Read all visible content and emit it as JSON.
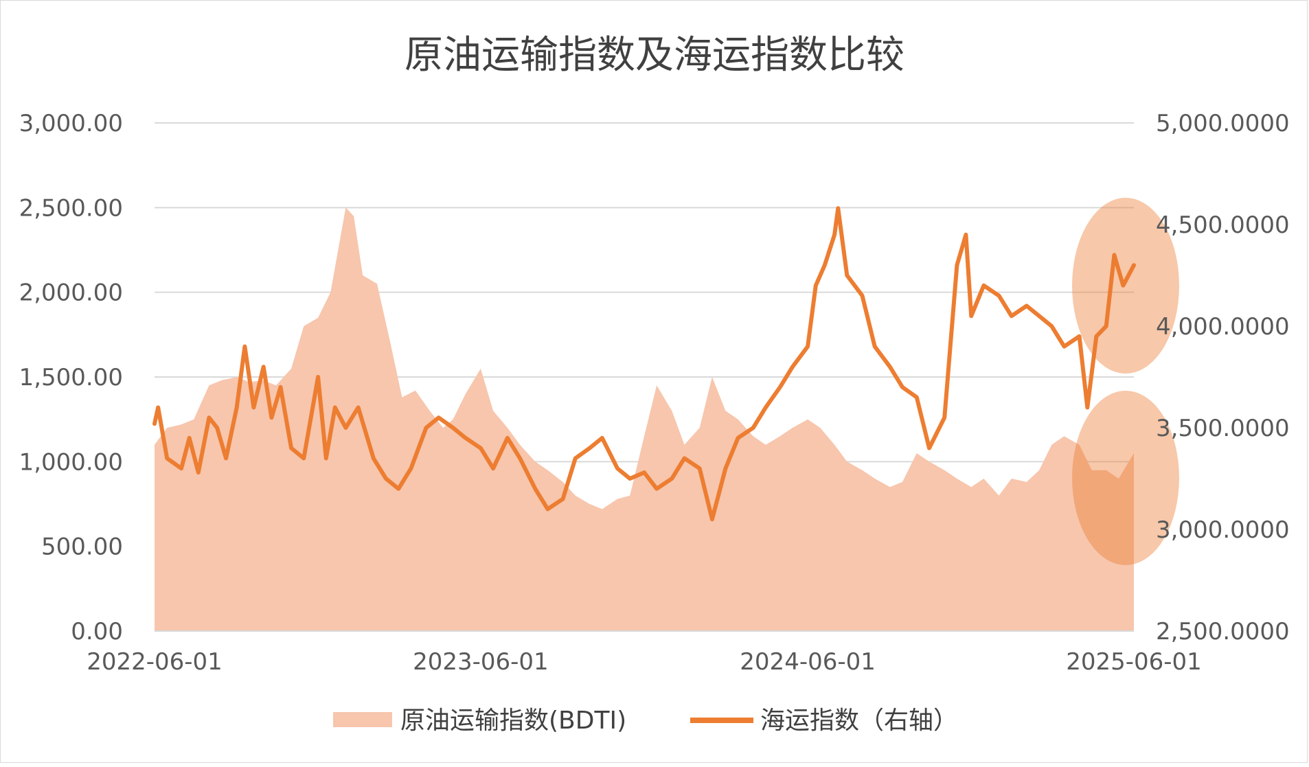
{
  "chart_data": {
    "type": "area+line",
    "title": "原油运输指数及海运指数比较",
    "x_range": [
      "2022-06-01",
      "2025-06-01"
    ],
    "x_ticks": [
      "2022-06-01",
      "2023-06-01",
      "2024-06-01",
      "2025-06-01"
    ],
    "y_left": {
      "range": [
        0,
        3000
      ],
      "ticks": [
        "0.00",
        "500.00",
        "1,000.00",
        "1,500.00",
        "2,000.00",
        "2,500.00",
        "3,000.00"
      ],
      "tick_values": [
        0,
        500,
        1000,
        1500,
        2000,
        2500,
        3000
      ]
    },
    "y_right": {
      "range": [
        2500,
        5000
      ],
      "ticks": [
        "2,500.0000",
        "3,000.0000",
        "3,500.0000",
        "4,000.0000",
        "4,500.0000",
        "5,000.0000"
      ],
      "tick_values": [
        2500,
        3000,
        3500,
        4000,
        4500,
        5000
      ]
    },
    "grid": true,
    "legend_position": "bottom",
    "series": [
      {
        "name": "原油运输指数(BDTI)",
        "kind": "area",
        "axis": "left",
        "color": "#f7c6ad",
        "points": [
          [
            "2022-06-01",
            1100
          ],
          [
            "2022-06-15",
            1200
          ],
          [
            "2022-07-01",
            1220
          ],
          [
            "2022-07-15",
            1250
          ],
          [
            "2022-08-01",
            1450
          ],
          [
            "2022-08-15",
            1480
          ],
          [
            "2022-09-01",
            1500
          ],
          [
            "2022-09-15",
            1470
          ],
          [
            "2022-10-01",
            1480
          ],
          [
            "2022-10-15",
            1450
          ],
          [
            "2022-11-01",
            1550
          ],
          [
            "2022-11-15",
            1800
          ],
          [
            "2022-12-01",
            1850
          ],
          [
            "2022-12-15",
            2000
          ],
          [
            "2023-01-01",
            2500
          ],
          [
            "2023-01-10",
            2450
          ],
          [
            "2023-01-20",
            2100
          ],
          [
            "2023-02-05",
            2050
          ],
          [
            "2023-02-20",
            1700
          ],
          [
            "2023-03-05",
            1380
          ],
          [
            "2023-03-20",
            1420
          ],
          [
            "2023-04-05",
            1300
          ],
          [
            "2023-04-20",
            1200
          ],
          [
            "2023-05-01",
            1250
          ],
          [
            "2023-05-15",
            1400
          ],
          [
            "2023-06-01",
            1550
          ],
          [
            "2023-06-15",
            1300
          ],
          [
            "2023-07-01",
            1200
          ],
          [
            "2023-07-15",
            1100
          ],
          [
            "2023-08-01",
            1000
          ],
          [
            "2023-08-15",
            950
          ],
          [
            "2023-09-01",
            880
          ],
          [
            "2023-09-15",
            800
          ],
          [
            "2023-10-01",
            750
          ],
          [
            "2023-10-15",
            720
          ],
          [
            "2023-11-01",
            780
          ],
          [
            "2023-11-15",
            800
          ],
          [
            "2023-12-01",
            1150
          ],
          [
            "2023-12-15",
            1450
          ],
          [
            "2024-01-01",
            1300
          ],
          [
            "2024-01-15",
            1100
          ],
          [
            "2024-02-01",
            1200
          ],
          [
            "2024-02-15",
            1500
          ],
          [
            "2024-03-01",
            1300
          ],
          [
            "2024-03-15",
            1250
          ],
          [
            "2024-04-01",
            1150
          ],
          [
            "2024-04-15",
            1100
          ],
          [
            "2024-05-01",
            1150
          ],
          [
            "2024-05-15",
            1200
          ],
          [
            "2024-06-01",
            1250
          ],
          [
            "2024-06-15",
            1200
          ],
          [
            "2024-07-01",
            1100
          ],
          [
            "2024-07-15",
            1000
          ],
          [
            "2024-08-01",
            950
          ],
          [
            "2024-08-15",
            900
          ],
          [
            "2024-09-01",
            850
          ],
          [
            "2024-09-15",
            880
          ],
          [
            "2024-10-01",
            1050
          ],
          [
            "2024-10-15",
            1000
          ],
          [
            "2024-11-01",
            950
          ],
          [
            "2024-11-15",
            900
          ],
          [
            "2024-12-01",
            850
          ],
          [
            "2024-12-15",
            900
          ],
          [
            "2025-01-01",
            800
          ],
          [
            "2025-01-15",
            900
          ],
          [
            "2025-02-01",
            880
          ],
          [
            "2025-02-15",
            950
          ],
          [
            "2025-03-01",
            1100
          ],
          [
            "2025-03-15",
            1150
          ],
          [
            "2025-04-01",
            1100
          ],
          [
            "2025-04-15",
            950
          ],
          [
            "2025-05-01",
            950
          ],
          [
            "2025-05-15",
            900
          ],
          [
            "2025-06-01",
            1050
          ]
        ]
      },
      {
        "name": "海运指数（右轴）",
        "kind": "line",
        "axis": "right",
        "color": "#ed7d31",
        "points": [
          [
            "2022-06-01",
            3520
          ],
          [
            "2022-06-05",
            3600
          ],
          [
            "2022-06-15",
            3350
          ],
          [
            "2022-07-01",
            3300
          ],
          [
            "2022-07-10",
            3450
          ],
          [
            "2022-07-20",
            3280
          ],
          [
            "2022-08-01",
            3550
          ],
          [
            "2022-08-10",
            3500
          ],
          [
            "2022-08-20",
            3350
          ],
          [
            "2022-09-01",
            3600
          ],
          [
            "2022-09-10",
            3900
          ],
          [
            "2022-09-20",
            3600
          ],
          [
            "2022-10-01",
            3800
          ],
          [
            "2022-10-10",
            3550
          ],
          [
            "2022-10-20",
            3700
          ],
          [
            "2022-11-01",
            3400
          ],
          [
            "2022-11-15",
            3350
          ],
          [
            "2022-12-01",
            3750
          ],
          [
            "2022-12-10",
            3350
          ],
          [
            "2022-12-20",
            3600
          ],
          [
            "2023-01-01",
            3500
          ],
          [
            "2023-01-15",
            3600
          ],
          [
            "2023-02-01",
            3350
          ],
          [
            "2023-02-15",
            3250
          ],
          [
            "2023-03-01",
            3200
          ],
          [
            "2023-03-15",
            3300
          ],
          [
            "2023-04-01",
            3500
          ],
          [
            "2023-04-15",
            3550
          ],
          [
            "2023-05-01",
            3500
          ],
          [
            "2023-05-15",
            3450
          ],
          [
            "2023-06-01",
            3400
          ],
          [
            "2023-06-15",
            3300
          ],
          [
            "2023-07-01",
            3450
          ],
          [
            "2023-07-15",
            3350
          ],
          [
            "2023-08-01",
            3200
          ],
          [
            "2023-08-15",
            3100
          ],
          [
            "2023-09-01",
            3150
          ],
          [
            "2023-09-15",
            3350
          ],
          [
            "2023-10-01",
            3400
          ],
          [
            "2023-10-15",
            3450
          ],
          [
            "2023-11-01",
            3300
          ],
          [
            "2023-11-15",
            3250
          ],
          [
            "2023-12-01",
            3280
          ],
          [
            "2023-12-15",
            3200
          ],
          [
            "2024-01-01",
            3250
          ],
          [
            "2024-01-15",
            3350
          ],
          [
            "2024-02-01",
            3300
          ],
          [
            "2024-02-15",
            3050
          ],
          [
            "2024-03-01",
            3300
          ],
          [
            "2024-03-15",
            3450
          ],
          [
            "2024-04-01",
            3500
          ],
          [
            "2024-04-15",
            3600
          ],
          [
            "2024-05-01",
            3700
          ],
          [
            "2024-05-15",
            3800
          ],
          [
            "2024-06-01",
            3900
          ],
          [
            "2024-06-10",
            4200
          ],
          [
            "2024-06-20",
            4300
          ],
          [
            "2024-07-01",
            4450
          ],
          [
            "2024-07-05",
            4580
          ],
          [
            "2024-07-15",
            4250
          ],
          [
            "2024-08-01",
            4150
          ],
          [
            "2024-08-15",
            3900
          ],
          [
            "2024-09-01",
            3800
          ],
          [
            "2024-09-15",
            3700
          ],
          [
            "2024-10-01",
            3650
          ],
          [
            "2024-10-15",
            3400
          ],
          [
            "2024-11-01",
            3550
          ],
          [
            "2024-11-15",
            4300
          ],
          [
            "2024-11-25",
            4450
          ],
          [
            "2024-12-01",
            4050
          ],
          [
            "2024-12-15",
            4200
          ],
          [
            "2025-01-01",
            4150
          ],
          [
            "2025-01-15",
            4050
          ],
          [
            "2025-02-01",
            4100
          ],
          [
            "2025-02-15",
            4050
          ],
          [
            "2025-03-01",
            4000
          ],
          [
            "2025-03-15",
            3900
          ],
          [
            "2025-04-01",
            3950
          ],
          [
            "2025-04-10",
            3600
          ],
          [
            "2025-04-20",
            3950
          ],
          [
            "2025-05-01",
            4000
          ],
          [
            "2025-05-10",
            4350
          ],
          [
            "2025-05-20",
            4200
          ],
          [
            "2025-06-01",
            4300
          ]
        ]
      }
    ],
    "annotations": [
      {
        "kind": "highlight-ellipse",
        "color": "#ed7d31"
      },
      {
        "kind": "highlight-ellipse",
        "color": "#ed7d31"
      }
    ]
  },
  "legend": {
    "items": [
      "原油运输指数(BDTI)",
      "海运指数（右轴）"
    ]
  }
}
